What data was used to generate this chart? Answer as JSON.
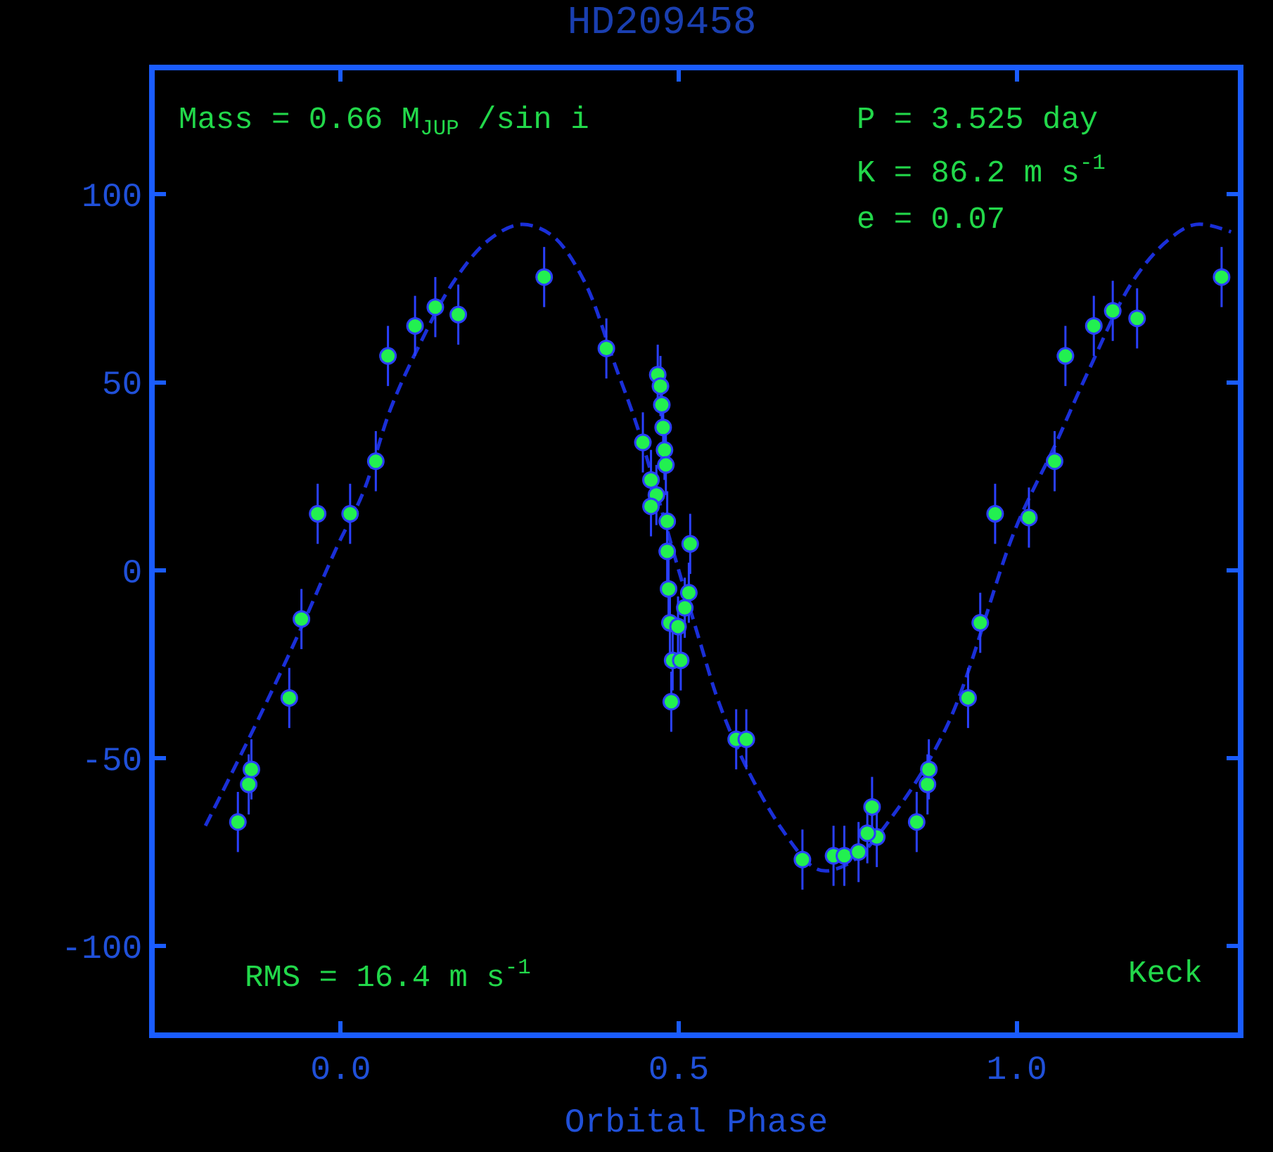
{
  "chart_data": {
    "type": "scatter",
    "title": "HD209458",
    "xlabel": "Orbital Phase",
    "xlim": [
      -0.275,
      1.327
    ],
    "xticks": [
      {
        "value": 0,
        "label": "0.0"
      },
      {
        "value": 0.5,
        "label": "0.5"
      },
      {
        "value": 1,
        "label": "1.0"
      }
    ],
    "ylim": [
      -123,
      133
    ],
    "yticks": [
      100,
      50,
      0,
      -50,
      -100
    ],
    "annotations": [
      "Mass = 0.66 M$_{JUP}$ /sin i",
      "P = 3.525 day",
      "K = 86.2 m s$^{-1}$",
      "e = 0.07",
      "RMS = 16.4 m s$^{-1}$",
      "Keck"
    ],
    "series": [
      {
        "type": "line",
        "color": "#1a2fd8",
        "line_style": "dashed",
        "marker": "none",
        "x": [
          -0.2,
          -0.12,
          -0.06,
          -0.006,
          0.034,
          0.074,
          0.114,
          0.168,
          0.22,
          0.267,
          0.313,
          0.36,
          0.407,
          0.439,
          0.5,
          0.533,
          0.559,
          0.599,
          0.653,
          0.699,
          0.72,
          0.76,
          0.818,
          0.898,
          0.998,
          1.056,
          1.106,
          1.172,
          1.225,
          1.265,
          1.317
        ],
        "values": [
          -68,
          -39,
          -16,
          6,
          21,
          43,
          59,
          77,
          88,
          92,
          89,
          77,
          54,
          38,
          0,
          -20,
          -35,
          -52,
          -69,
          -79,
          -80,
          -77,
          -65,
          -41,
          11,
          33,
          53,
          77,
          88,
          92,
          90
        ]
      },
      {
        "color": "#22f050",
        "marker": "circle",
        "x": [
          -0.152,
          -0.136,
          -0.132,
          -0.076,
          -0.058,
          -0.034,
          0.014,
          0.052,
          0.07,
          0.11,
          0.14,
          0.174,
          0.301,
          0.393,
          0.469,
          0.473,
          0.475,
          0.477,
          0.447,
          0.479,
          0.481,
          0.459,
          0.467,
          0.459,
          0.483,
          0.517,
          0.483,
          0.485,
          0.515,
          0.509,
          0.487,
          0.499,
          0.491,
          0.503,
          0.489,
          0.585,
          0.6,
          0.683,
          0.729,
          0.745,
          0.766,
          0.786,
          0.793,
          0.779,
          0.852,
          0.868,
          0.87,
          0.928,
          0.946,
          0.968,
          1.018,
          1.056,
          1.072,
          1.114,
          1.142,
          1.178,
          1.303
        ],
        "values": [
          -67,
          -57,
          -53,
          -34,
          -13,
          15,
          15,
          29,
          57,
          65,
          70,
          68,
          78,
          59,
          52,
          49,
          44,
          38,
          34,
          32,
          28,
          24,
          20,
          17,
          13,
          7,
          5,
          -5,
          -6,
          -10,
          -14,
          -15,
          -24,
          -24,
          -35,
          -45,
          -45,
          -77,
          -76,
          -76,
          -75,
          -63,
          -71,
          -70,
          -67,
          -57,
          -53,
          -34,
          -14,
          15,
          14,
          29,
          57,
          65,
          69,
          67,
          78
        ],
        "errors": [
          8,
          8,
          8,
          8,
          8,
          8,
          8,
          8,
          8,
          8,
          8,
          8,
          8,
          8,
          8,
          8,
          8,
          8,
          8,
          8,
          8,
          8,
          8,
          8,
          8,
          8,
          8,
          8,
          8,
          8,
          8,
          8,
          8,
          8,
          8,
          8,
          8,
          8,
          8,
          8,
          8,
          8,
          8,
          8,
          8,
          8,
          8,
          8,
          8,
          8,
          8,
          8,
          8,
          8,
          8,
          8,
          8
        ]
      }
    ]
  }
}
